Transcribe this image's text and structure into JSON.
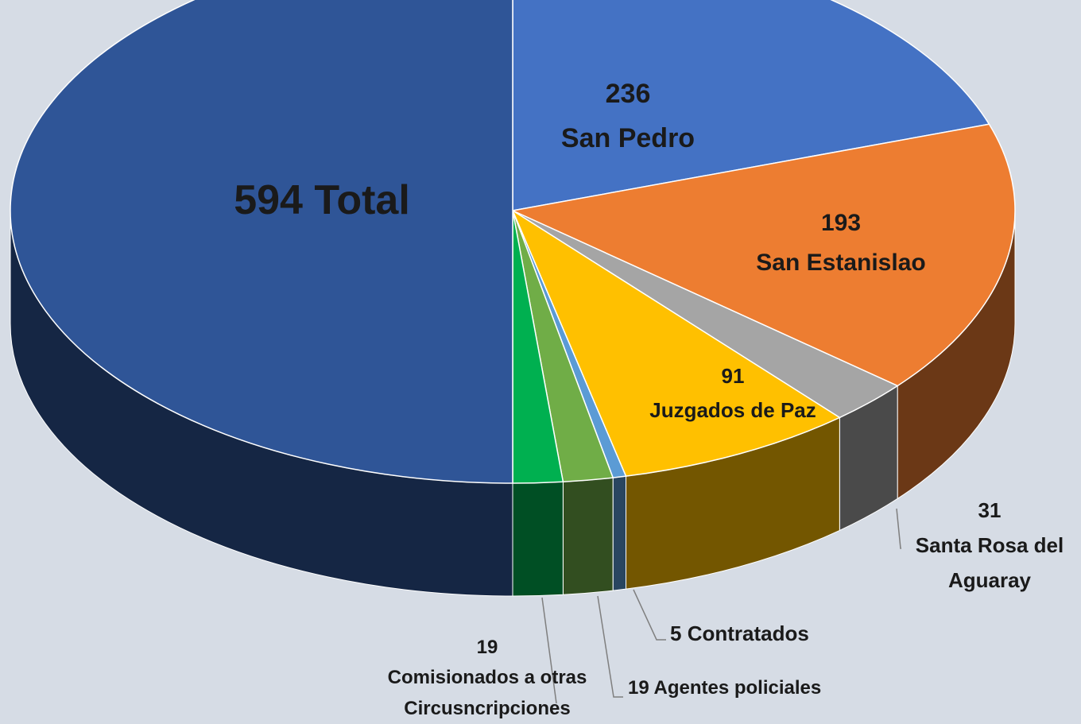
{
  "chart_data": {
    "type": "pie3d",
    "categories": [
      "Total",
      "San Pedro",
      "San Estanislao",
      "Santa Rosa del Aguaray",
      "Juzgados de Paz",
      "Contratados",
      "Agentes policiales",
      "Comisionados a otras Circusncripciones"
    ],
    "values": [
      594,
      236,
      193,
      31,
      91,
      5,
      19,
      19
    ],
    "colors": [
      "#2f5597",
      "#4472c4",
      "#ed7d31",
      "#a5a5a5",
      "#ffc000",
      "#5b9bd5",
      "#70ad47",
      "#00b050"
    ]
  }
}
